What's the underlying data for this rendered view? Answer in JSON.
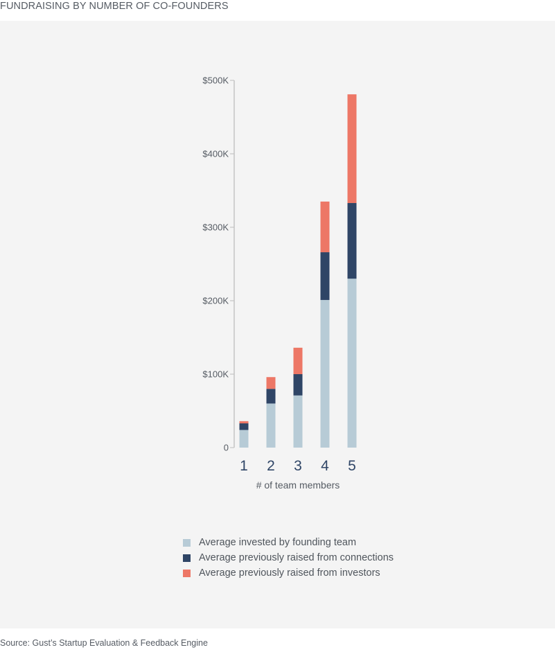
{
  "title": "FUNDRAISING BY NUMBER OF CO-FOUNDERS",
  "source": "Source: Gust’s Startup Evaluation & Feedback Engine",
  "chart_data": {
    "type": "bar",
    "stacked": true,
    "categories": [
      "1",
      "2",
      "3",
      "4",
      "5"
    ],
    "xlabel": "# of team members",
    "ylabel": "",
    "ylim": [
      0,
      500000
    ],
    "yticks": [
      0,
      100000,
      200000,
      300000,
      400000,
      500000
    ],
    "ytick_labels": [
      "0",
      "$100K",
      "$200K",
      "$300K",
      "$400K",
      "$500K"
    ],
    "grid": false,
    "legend_position": "bottom",
    "series": [
      {
        "name": "Average invested by founding team",
        "color": "#b7cbd6",
        "values": [
          24000,
          60000,
          71000,
          201000,
          230000
        ]
      },
      {
        "name": "Average previously raised from connections",
        "color": "#2f4566",
        "values": [
          9000,
          20000,
          29000,
          65000,
          103000
        ]
      },
      {
        "name": "Average previously raised from investors",
        "color": "#ed7766",
        "values": [
          3000,
          16000,
          36000,
          69000,
          148000
        ]
      }
    ]
  }
}
